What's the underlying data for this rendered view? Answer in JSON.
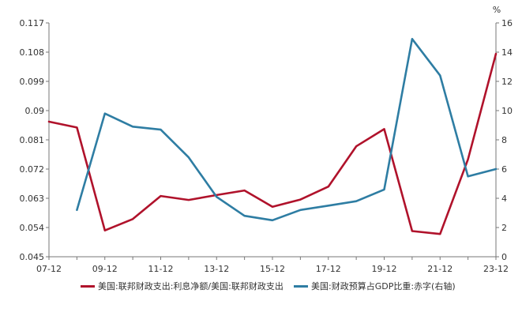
{
  "chart_data": {
    "type": "line",
    "categories": [
      "07-12",
      "08-12",
      "09-12",
      "10-12",
      "11-12",
      "12-12",
      "13-12",
      "14-12",
      "15-12",
      "16-12",
      "17-12",
      "18-12",
      "19-12",
      "20-12",
      "21-12",
      "22-12",
      "23-12"
    ],
    "x_tick_labels": [
      "07-12",
      "09-12",
      "11-12",
      "13-12",
      "15-12",
      "17-12",
      "19-12",
      "21-12",
      "23-12"
    ],
    "left_axis": {
      "ylim": [
        0.045,
        0.117
      ],
      "ticks": [
        "0.045",
        "0.054",
        "0.063",
        "0.072",
        "0.081",
        "0.09",
        "0.099",
        "0.108",
        "0.117"
      ]
    },
    "right_axis": {
      "unit": "%",
      "ylim": [
        0,
        16
      ],
      "ticks": [
        "0",
        "2",
        "4",
        "6",
        "8",
        "10",
        "12",
        "14",
        "16"
      ]
    },
    "series": [
      {
        "name": "美国:联邦财政支出:利息净额/美国:联邦财政支出",
        "axis": "left",
        "color": "#b0122b",
        "values": [
          0.0866,
          0.0848,
          0.0531,
          0.0566,
          0.0637,
          0.0625,
          0.064,
          0.0654,
          0.0604,
          0.0626,
          0.0666,
          0.079,
          0.0843,
          0.0529,
          0.052,
          0.075,
          0.1075
        ]
      },
      {
        "name": "美国:财政预算占GDP比重:赤字(右轴)",
        "axis": "right",
        "color": "#2e7da3",
        "values": [
          null,
          3.2,
          9.8,
          8.9,
          8.7,
          6.8,
          4.1,
          2.8,
          2.5,
          3.2,
          3.5,
          3.8,
          4.6,
          14.9,
          12.4,
          5.5,
          6.0
        ]
      }
    ]
  }
}
